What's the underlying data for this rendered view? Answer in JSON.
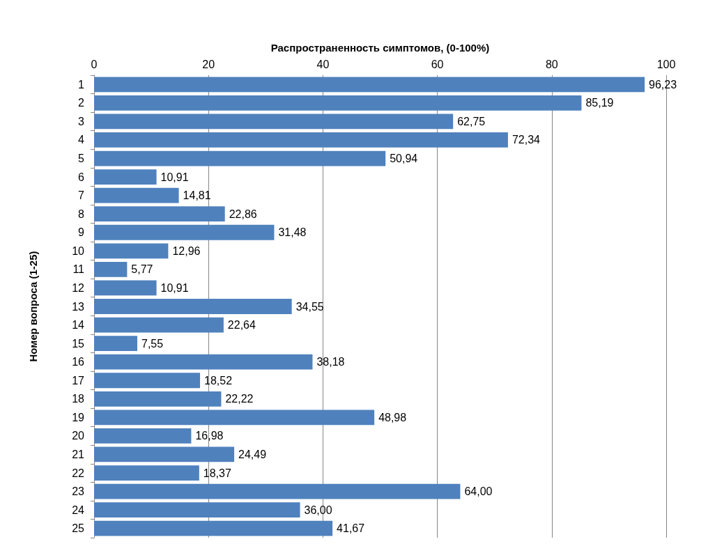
{
  "chart_data": {
    "type": "bar",
    "orientation": "horizontal",
    "xlabel": "Распространенность симптомов, (0-100%)",
    "ylabel": "Номер вопроса (1-25)",
    "categories": [
      "1",
      "2",
      "3",
      "4",
      "5",
      "6",
      "7",
      "8",
      "9",
      "10",
      "11",
      "12",
      "13",
      "14",
      "15",
      "16",
      "17",
      "18",
      "19",
      "20",
      "21",
      "22",
      "23",
      "24",
      "25"
    ],
    "values": [
      96.23,
      85.19,
      62.75,
      72.34,
      50.94,
      10.91,
      14.81,
      22.86,
      31.48,
      12.96,
      5.77,
      10.91,
      34.55,
      22.64,
      7.55,
      38.18,
      18.52,
      22.22,
      48.98,
      16.98,
      24.49,
      18.37,
      64.0,
      36.0,
      41.67
    ],
    "value_labels": [
      "96,23",
      "85,19",
      "62,75",
      "72,34",
      "50,94",
      "10,91",
      "14,81",
      "22,86",
      "31,48",
      "12,96",
      "5,77",
      "10,91",
      "34,55",
      "22,64",
      "7,55",
      "38,18",
      "18,52",
      "22,22",
      "48,98",
      "16,98",
      "24,49",
      "18,37",
      "64,00",
      "36,00",
      "41,67"
    ],
    "color": "#4f81bd",
    "xlim": [
      0,
      100
    ],
    "xticks": [
      0,
      20,
      40,
      60,
      80,
      100
    ],
    "grid": "x"
  }
}
